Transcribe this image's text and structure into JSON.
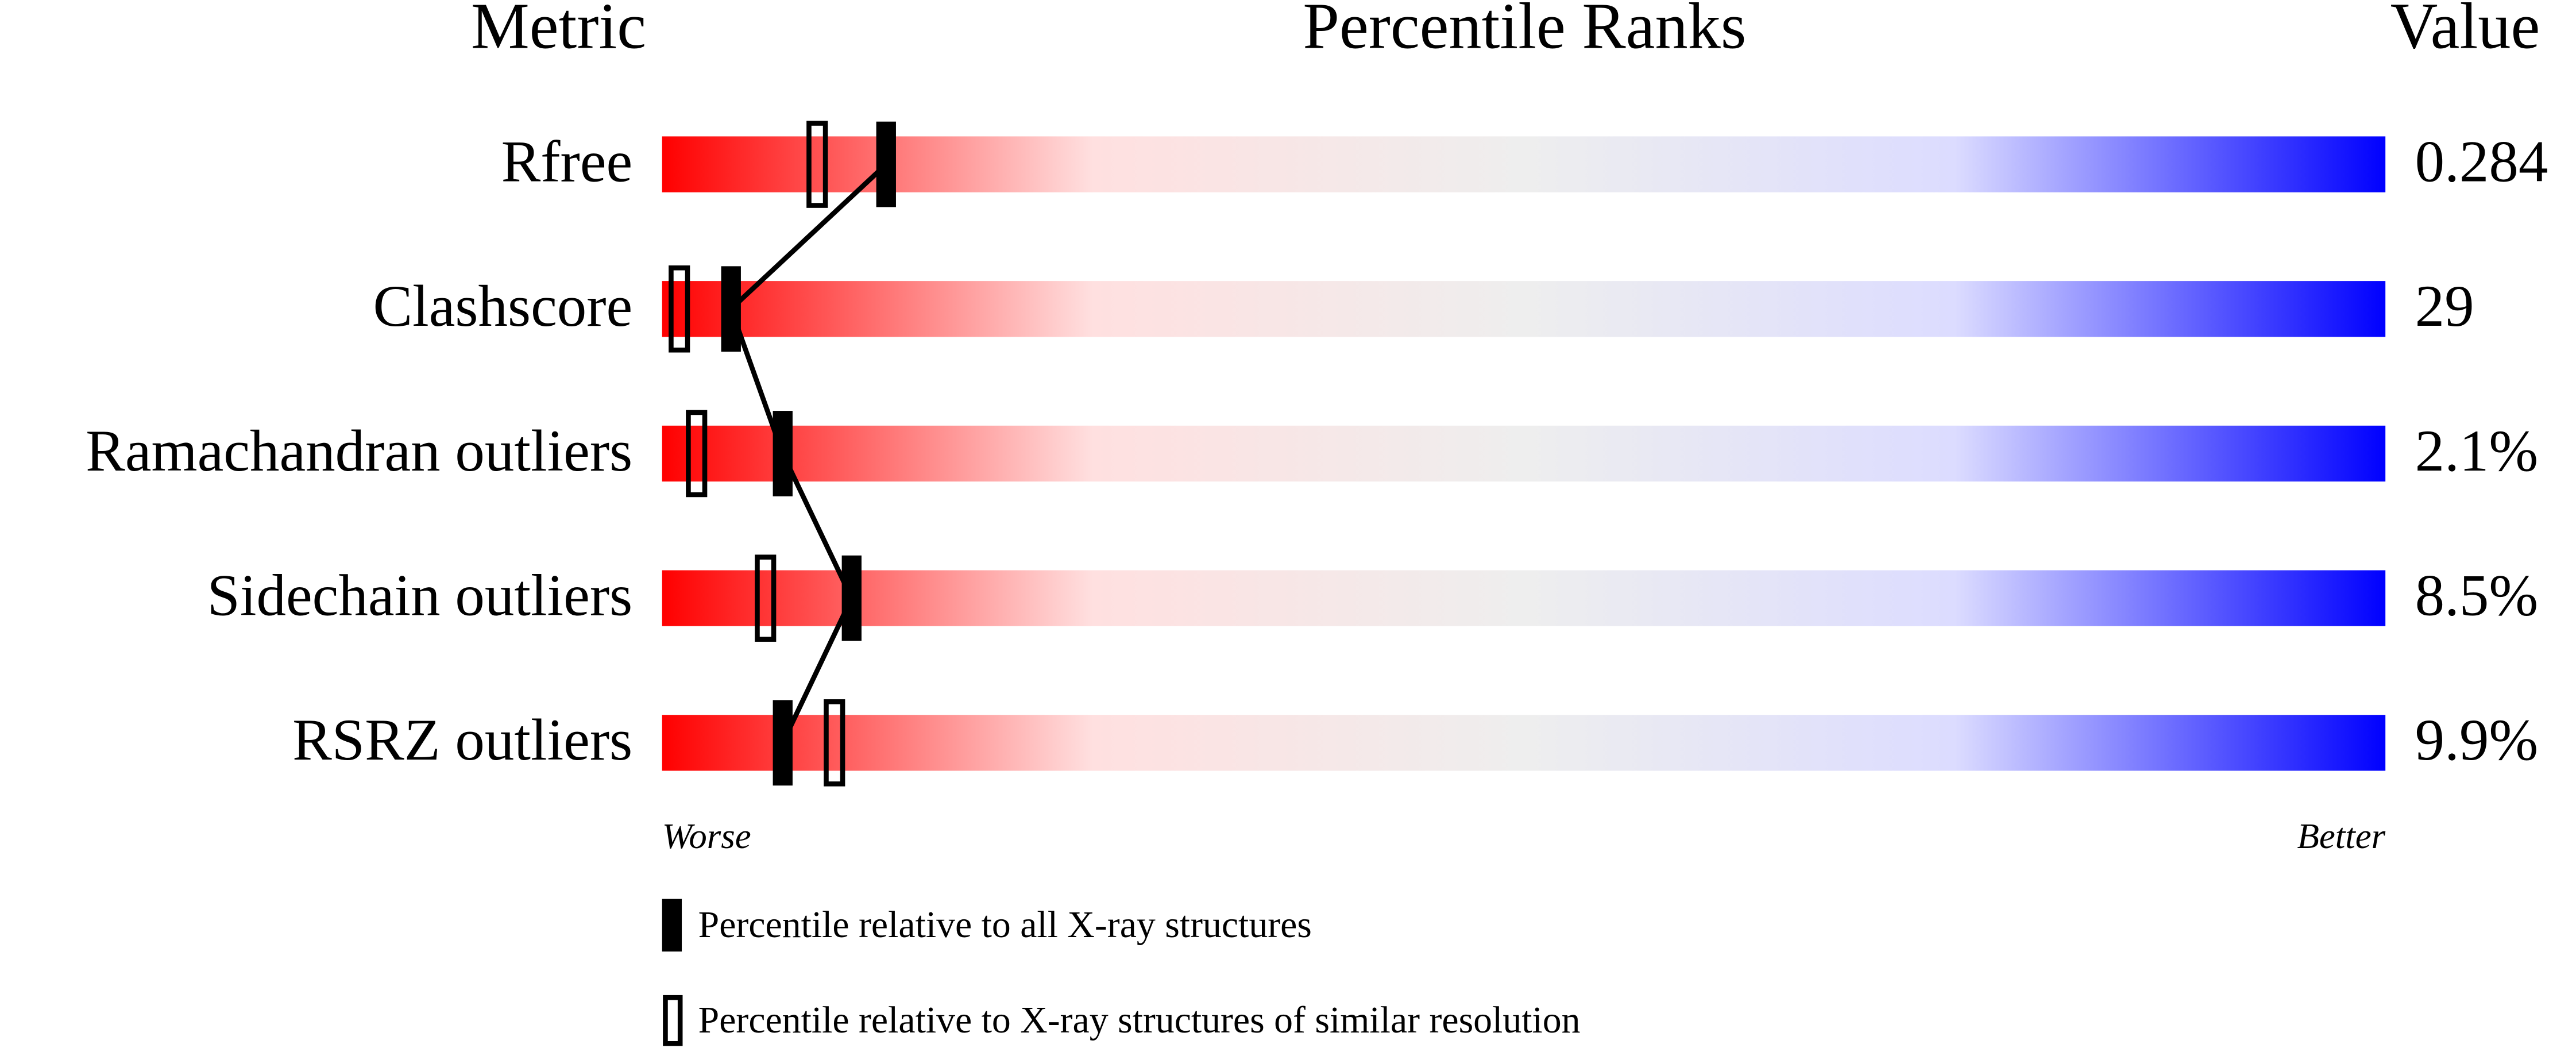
{
  "chart_data": {
    "type": "percentile",
    "headers": [
      "Metric",
      "Percentile Ranks",
      "Value"
    ],
    "categories": [
      "Rfree",
      "Clashscore",
      "Ramachandran outliers",
      "Sidechain outliers",
      "RSRZ outliers"
    ],
    "metric_values": [
      "0.284",
      "29",
      "2.1%",
      "8.5%",
      "9.9%"
    ],
    "series": [
      {
        "name": "Percentile relative to all X-ray structures",
        "style": "filled",
        "color": "#000000",
        "values": [
          13,
          4,
          7,
          11,
          7
        ]
      },
      {
        "name": "Percentile relative to X-ray structures of similar resolution",
        "style": "open",
        "color": "#000000",
        "values": [
          9,
          1,
          2,
          6,
          10
        ]
      }
    ],
    "xlim": [
      0,
      100
    ],
    "worse_label": "Worse",
    "better_label": "Better",
    "gradient": [
      "#ff0000",
      "#ffe0e0",
      "#eeeeee",
      "#dcdcff",
      "#0000ff"
    ]
  }
}
